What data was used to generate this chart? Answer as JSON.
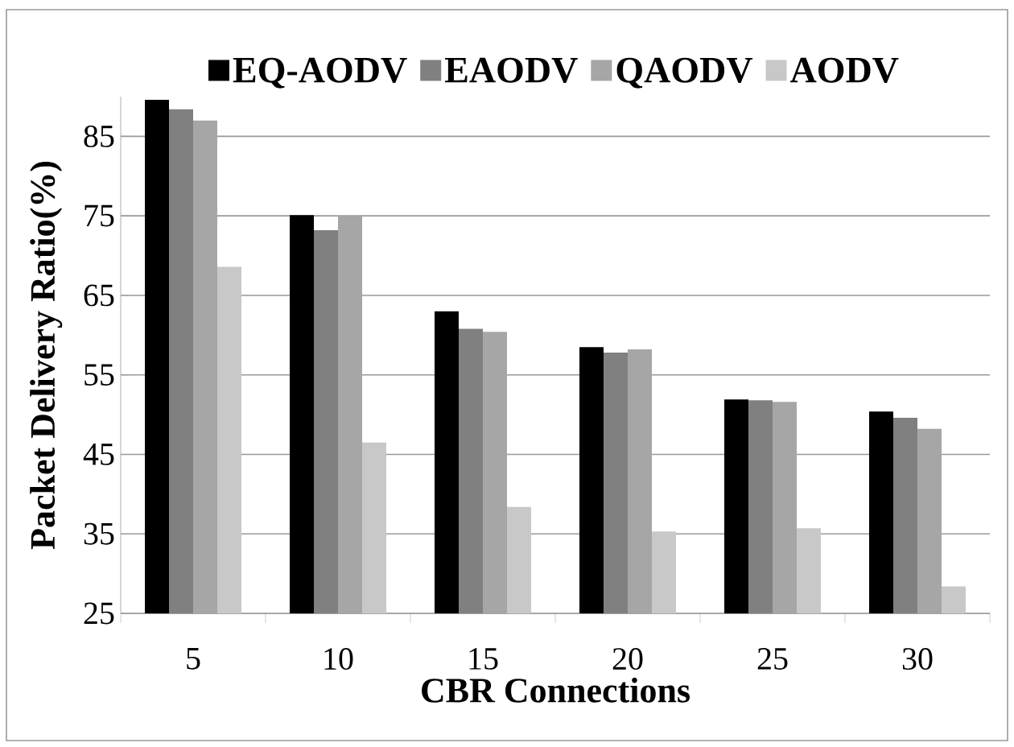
{
  "chart_data": {
    "type": "bar",
    "xlabel": "CBR Connections",
    "ylabel": "Packet Delivery Ratio(%)",
    "categories": [
      "5",
      "10",
      "15",
      "20",
      "25",
      "30"
    ],
    "series": [
      {
        "name": "EQ-AODV",
        "color": "#000000",
        "values": [
          89.6,
          75.1,
          63.0,
          58.5,
          51.9,
          50.4
        ]
      },
      {
        "name": "EAODV",
        "color": "#808080",
        "values": [
          88.4,
          73.2,
          60.8,
          57.8,
          51.8,
          49.6
        ]
      },
      {
        "name": "QAODV",
        "color": "#a6a6a6",
        "values": [
          87.0,
          75.0,
          60.4,
          58.2,
          51.6,
          48.2
        ]
      },
      {
        "name": "AODV",
        "color": "#c8c8c8",
        "values": [
          68.6,
          46.5,
          38.4,
          35.3,
          35.7,
          28.4
        ]
      }
    ],
    "ylim": [
      25,
      90
    ],
    "yticks": [
      25,
      35,
      45,
      55,
      65,
      75,
      85
    ],
    "grid": "y",
    "legend": "top"
  }
}
